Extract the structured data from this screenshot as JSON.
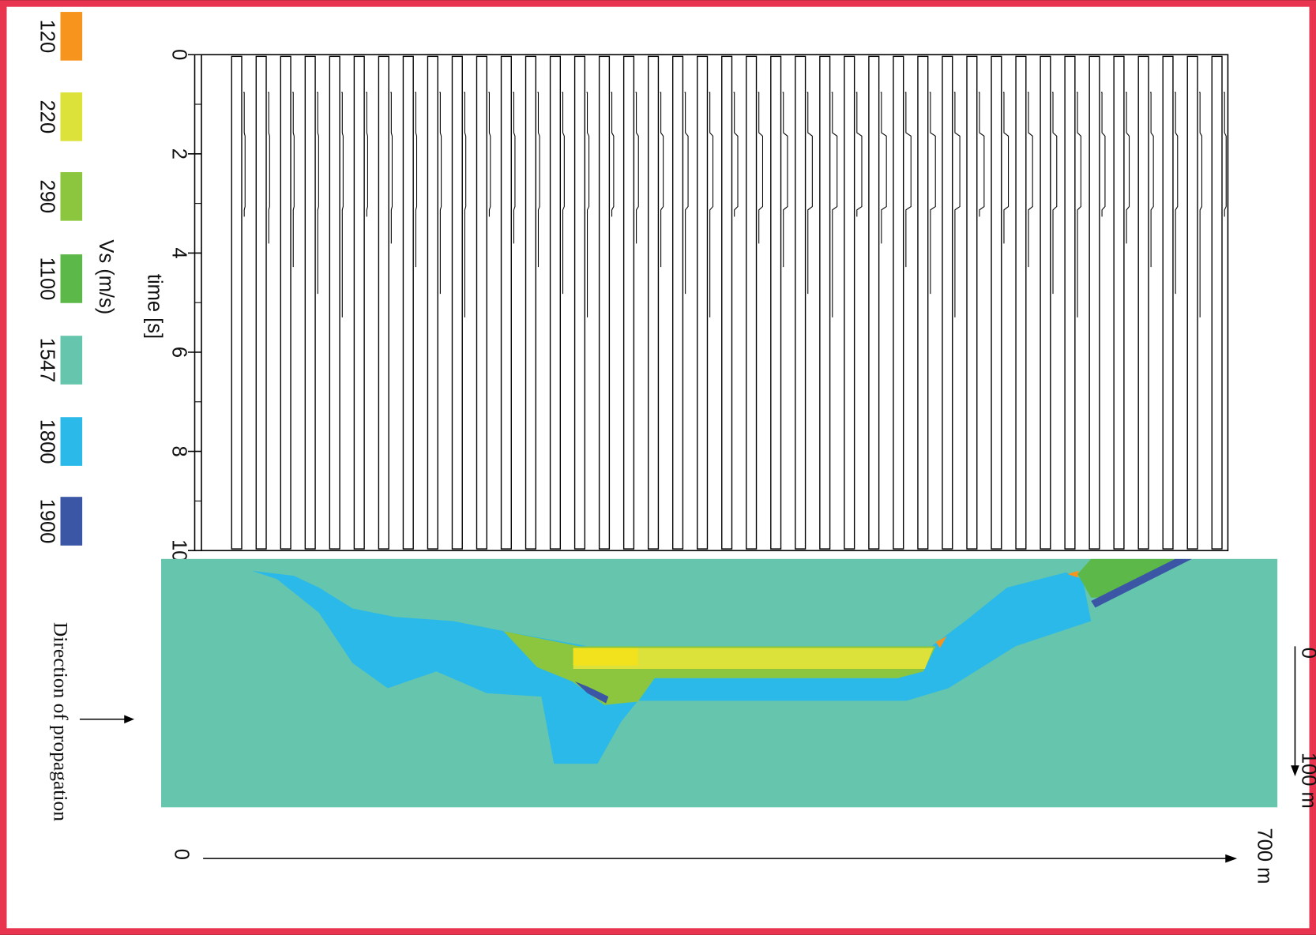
{
  "legend": {
    "title": "Vs (m/s)",
    "items": [
      {
        "label": "120",
        "color": "#f7941d"
      },
      {
        "label": "220",
        "color": "#dce23a"
      },
      {
        "label": "290",
        "color": "#8cc63f"
      },
      {
        "label": "1100",
        "color": "#5cb848"
      },
      {
        "label": "1547",
        "color": "#66c5ad"
      },
      {
        "label": "1800",
        "color": "#2bb9e9"
      },
      {
        "label": "1900",
        "color": "#3a56a5"
      }
    ]
  },
  "traces": {
    "axis_label": "time [s]",
    "ticks": [
      "0",
      "2",
      "4",
      "6",
      "8",
      "10"
    ]
  },
  "section": {
    "direction_label": "Direction of propagation",
    "depth_scale": [
      "0",
      "100 m"
    ],
    "distance_scale": [
      "0",
      "700 m"
    ]
  }
}
